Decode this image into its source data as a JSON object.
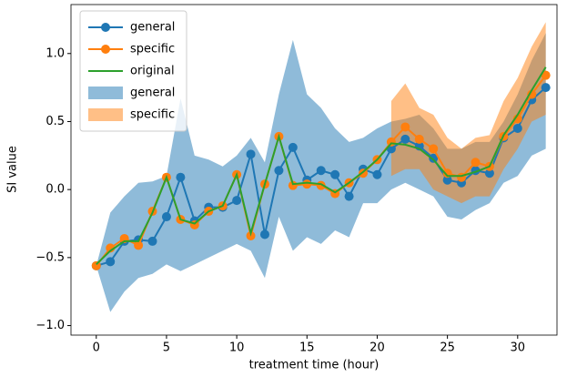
{
  "chart_data": {
    "type": "line",
    "xlabel": "treatment time (hour)",
    "ylabel": "SI value",
    "x": [
      0,
      1,
      2,
      3,
      4,
      5,
      6,
      7,
      8,
      9,
      10,
      11,
      12,
      13,
      14,
      15,
      16,
      17,
      18,
      19,
      20,
      21,
      22,
      23,
      24,
      25,
      26,
      27,
      28,
      29,
      30,
      31,
      32
    ],
    "series": [
      {
        "name": "general",
        "color": "#1f77b4",
        "marker": true,
        "values": [
          -0.56,
          -0.53,
          -0.38,
          -0.37,
          -0.38,
          -0.2,
          0.09,
          -0.23,
          -0.13,
          -0.13,
          -0.08,
          0.26,
          -0.33,
          0.14,
          0.31,
          0.07,
          0.14,
          0.11,
          -0.05,
          0.15,
          0.11,
          0.3,
          0.37,
          0.32,
          0.23,
          0.07,
          0.05,
          0.14,
          0.12,
          0.38,
          0.45,
          0.66,
          0.75
        ]
      },
      {
        "name": "specific",
        "color": "#ff7f0e",
        "marker": true,
        "values": [
          -0.56,
          -0.43,
          -0.36,
          -0.41,
          -0.16,
          0.09,
          -0.22,
          -0.26,
          -0.16,
          -0.12,
          0.11,
          -0.34,
          0.04,
          0.39,
          0.03,
          0.04,
          0.03,
          -0.03,
          0.05,
          0.12,
          0.22,
          0.35,
          0.46,
          0.37,
          0.3,
          0.12,
          0.09,
          0.2,
          0.17,
          0.39,
          0.52,
          0.7,
          0.84
        ]
      },
      {
        "name": "original",
        "color": "#2ca02c",
        "marker": false,
        "values": [
          -0.55,
          -0.45,
          -0.38,
          -0.38,
          -0.17,
          0.09,
          -0.22,
          -0.25,
          -0.16,
          -0.12,
          0.11,
          -0.32,
          0.04,
          0.39,
          0.04,
          0.05,
          0.04,
          -0.02,
          0.05,
          0.13,
          0.22,
          0.34,
          0.33,
          0.3,
          0.22,
          0.1,
          0.1,
          0.13,
          0.17,
          0.4,
          0.55,
          0.73,
          0.9
        ]
      }
    ],
    "bands": [
      {
        "name": "general",
        "color": "#1f77b4",
        "x": [
          0,
          1,
          2,
          3,
          4,
          5,
          6,
          7,
          8,
          9,
          10,
          11,
          12,
          13,
          14,
          15,
          16,
          17,
          18,
          19,
          20,
          21,
          22,
          23,
          24,
          25,
          26,
          27,
          28,
          29,
          30,
          31,
          32
        ],
        "lower": [
          -0.56,
          -0.9,
          -0.75,
          -0.65,
          -0.62,
          -0.55,
          -0.6,
          -0.55,
          -0.5,
          -0.45,
          -0.4,
          -0.45,
          -0.65,
          -0.2,
          -0.45,
          -0.35,
          -0.4,
          -0.3,
          -0.35,
          -0.1,
          -0.1,
          0.0,
          0.05,
          0.0,
          -0.05,
          -0.2,
          -0.22,
          -0.15,
          -0.1,
          0.05,
          0.1,
          0.25,
          0.3
        ],
        "upper": [
          -0.56,
          -0.17,
          -0.05,
          0.05,
          0.06,
          0.1,
          0.67,
          0.25,
          0.22,
          0.17,
          0.25,
          0.38,
          0.2,
          0.7,
          1.1,
          0.7,
          0.6,
          0.45,
          0.35,
          0.38,
          0.45,
          0.5,
          0.52,
          0.55,
          0.45,
          0.3,
          0.3,
          0.35,
          0.35,
          0.5,
          0.7,
          0.95,
          1.15
        ]
      },
      {
        "name": "specific",
        "color": "#ff7f0e",
        "x": [
          21,
          22,
          23,
          24,
          25,
          26,
          27,
          28,
          29,
          30,
          31,
          32
        ],
        "lower": [
          0.1,
          0.15,
          0.15,
          0.0,
          -0.05,
          -0.1,
          -0.05,
          -0.05,
          0.15,
          0.3,
          0.5,
          0.55
        ],
        "upper": [
          0.65,
          0.78,
          0.6,
          0.55,
          0.38,
          0.3,
          0.38,
          0.4,
          0.65,
          0.82,
          1.05,
          1.23
        ]
      }
    ],
    "xlim": [
      -1.8,
      32.8
    ],
    "ylim": [
      -1.07,
      1.36
    ],
    "xticks": [
      0,
      5,
      10,
      15,
      20,
      25,
      30
    ],
    "yticks": [
      {
        "value": -1.0,
        "label": "−1.0"
      },
      {
        "value": -0.5,
        "label": "−0.5"
      },
      {
        "value": 0.0,
        "label": "0.0"
      },
      {
        "value": 0.5,
        "label": "0.5"
      },
      {
        "value": 1.0,
        "label": "1.0"
      }
    ],
    "legend": "upper left",
    "band_alpha": 0.5
  }
}
